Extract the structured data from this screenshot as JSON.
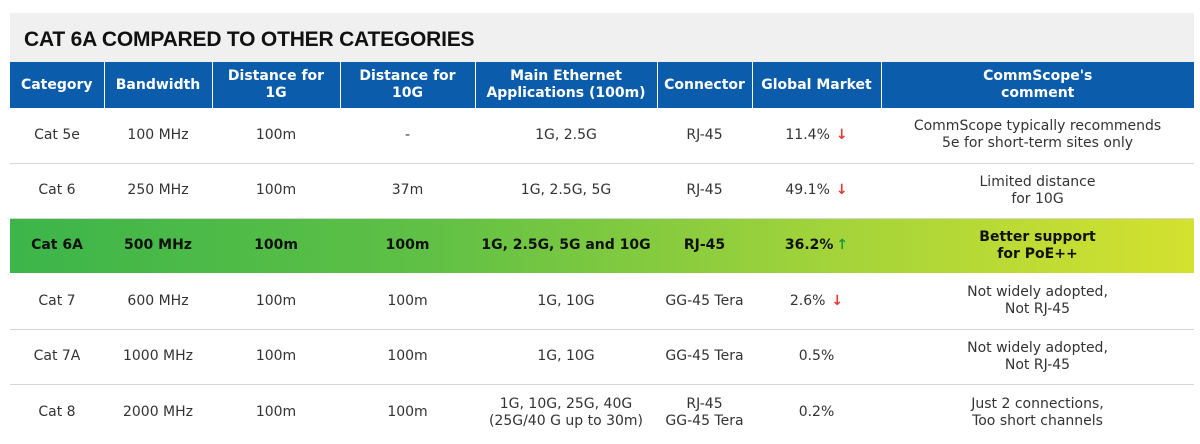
{
  "title": "CAT 6A COMPARED TO OTHER CATEGORIES",
  "colors": {
    "header_bg": "#0b5dab",
    "highlight_start": "#3cb54a",
    "highlight_end": "#d4e12f",
    "down_arrow": "#e53935",
    "up_arrow": "#1e9b3a"
  },
  "headers": [
    "Category",
    "Bandwidth",
    "Distance for 1G",
    "Distance for 10G",
    "Main Ethernet\nApplications (100m)",
    "Connector",
    "Global Market",
    "CommScope's\ncomment"
  ],
  "rows": [
    {
      "category": "Cat 5e",
      "bandwidth": "100 MHz",
      "dist1g": "100m",
      "dist10g": "-",
      "apps": "1G, 2.5G",
      "connector": "RJ-45",
      "market": "11.4%",
      "trend": "↓",
      "comment": "CommScope typically recommends\n5e for short-term sites only"
    },
    {
      "category": "Cat 6",
      "bandwidth": "250 MHz",
      "dist1g": "100m",
      "dist10g": "37m",
      "apps": "1G, 2.5G, 5G",
      "connector": "RJ-45",
      "market": "49.1%",
      "trend": "↓",
      "comment": "Limited distance\nfor 10G"
    },
    {
      "category": "Cat 6A",
      "bandwidth": "500 MHz",
      "dist1g": "100m",
      "dist10g": "100m",
      "apps": "1G, 2.5G, 5G and 10G",
      "connector": "RJ-45",
      "market": "36.2%",
      "trend": "↑",
      "comment": "Better support\nfor PoE++"
    },
    {
      "category": "Cat 7",
      "bandwidth": "600 MHz",
      "dist1g": "100m",
      "dist10g": "100m",
      "apps": "1G, 10G",
      "connector": "GG-45 Tera",
      "market": "2.6%",
      "trend": "↓",
      "comment": "Not widely adopted,\nNot RJ-45"
    },
    {
      "category": "Cat 7A",
      "bandwidth": "1000 MHz",
      "dist1g": "100m",
      "dist10g": "100m",
      "apps": "1G, 10G",
      "connector": "GG-45 Tera",
      "market": "0.5%",
      "trend": "",
      "comment": "Not widely adopted,\nNot RJ-45"
    },
    {
      "category": "Cat 8",
      "bandwidth": "2000 MHz",
      "dist1g": "100m",
      "dist10g": "100m",
      "apps": "1G, 10G, 25G, 40G\n(25G/40 G up to 30m)",
      "connector": "RJ-45\nGG-45 Tera",
      "market": "0.2%",
      "trend": "",
      "comment": "Just 2 connections,\nToo short channels"
    }
  ]
}
